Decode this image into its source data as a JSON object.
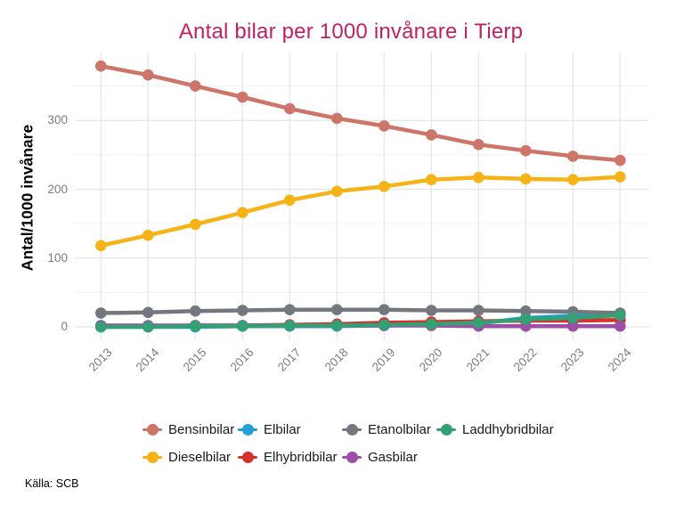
{
  "theme": {
    "title_color": "#BF2166",
    "background": "#FFFFFF",
    "grid_major": "#E5E5E5",
    "grid_minor": "#F0F0F0",
    "tick_label_color": "#7C7C7C",
    "legend_text_color": "#1A1A1A",
    "axis_title_color": "#000000"
  },
  "chart_data": {
    "type": "line",
    "title": "Antal bilar per 1000 invånare i Tierp",
    "ylabel": "Antal/1000 invånare",
    "xlabel": "",
    "source": "Källa: SCB",
    "legend_position": "bottom",
    "grid": true,
    "x": [
      2013,
      2014,
      2015,
      2016,
      2017,
      2018,
      2019,
      2020,
      2021,
      2022,
      2023,
      2024
    ],
    "y_ticks": [
      0,
      100,
      200,
      300
    ],
    "y_minor": [
      50,
      150,
      250,
      350
    ],
    "ylim": [
      -20,
      400
    ],
    "series": [
      {
        "name": "Bensinbilar",
        "color": "#CC7568",
        "values": [
          379,
          366,
          350,
          334,
          317,
          303,
          292,
          279,
          265,
          256,
          248,
          242
        ]
      },
      {
        "name": "Dieselbilar",
        "color": "#F5B317",
        "values": [
          118,
          133,
          149,
          166,
          184,
          197,
          204,
          214,
          217,
          215,
          214,
          218
        ]
      },
      {
        "name": "Elbilar",
        "color": "#22A0DA",
        "values": [
          0,
          0,
          0,
          1,
          1,
          1,
          2,
          3,
          5,
          13,
          16,
          19
        ]
      },
      {
        "name": "Elhybridbilar",
        "color": "#D6312D",
        "values": [
          1,
          1,
          2,
          2,
          3,
          4,
          6,
          7,
          8,
          9,
          9,
          10
        ]
      },
      {
        "name": "Etanolbilar",
        "color": "#73787E",
        "values": [
          20,
          21,
          23,
          24,
          25,
          25,
          25,
          24,
          24,
          23,
          22,
          20
        ]
      },
      {
        "name": "Gasbilar",
        "color": "#9B4FA5",
        "values": [
          2,
          2,
          2,
          2,
          2,
          2,
          2,
          2,
          1,
          1,
          1,
          1
        ]
      },
      {
        "name": "Laddhybridbilar",
        "color": "#33A173",
        "values": [
          0,
          0,
          1,
          1,
          2,
          2,
          3,
          4,
          6,
          11,
          13,
          17
        ]
      }
    ]
  }
}
